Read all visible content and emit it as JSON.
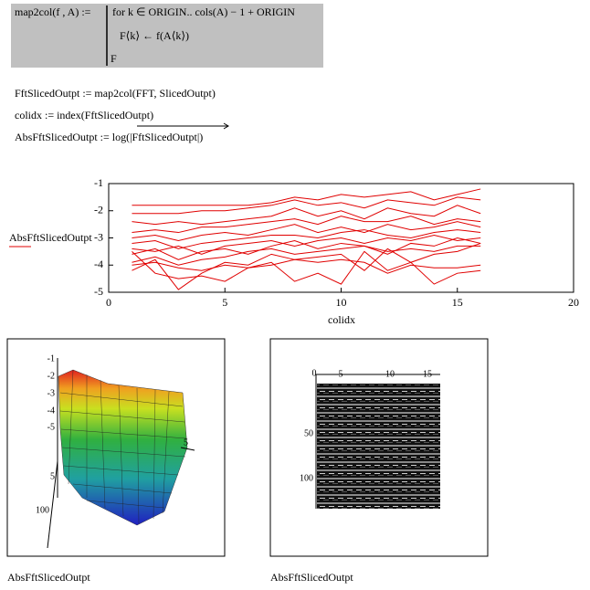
{
  "program": {
    "definition": "map2col(f , A) :=",
    "loop": "for  k ∈ ORIGIN.. cols(A) − 1 + ORIGIN",
    "body": "F⟨k⟩ ← f(A⟨k⟩)",
    "result": "F"
  },
  "equations": [
    "FftSlicedOutpt := map2col(FFT, SlicedOutpt)",
    "colidx := index(FftSlicedOutpt)",
    "AbsFftSlicedOutpt := log(|FftSlicedOutpt|)"
  ],
  "chart_data": {
    "type": "line",
    "xlabel": "colidx",
    "ylabel": "AbsFftSlicedOutpt",
    "x": [
      1,
      2,
      3,
      4,
      5,
      6,
      7,
      8,
      9,
      10,
      11,
      12,
      13,
      14,
      15,
      16
    ],
    "series": [
      {
        "color": "#e00000",
        "values": [
          -1.8,
          -1.8,
          -1.8,
          -1.8,
          -1.8,
          -1.8,
          -1.7,
          -1.5,
          -1.6,
          -1.4,
          -1.5,
          -1.4,
          -1.3,
          -1.6,
          -1.4,
          -1.2
        ]
      },
      {
        "color": "#e00000",
        "values": [
          -2.1,
          -2.1,
          -2.1,
          -2.0,
          -2.0,
          -1.9,
          -1.8,
          -1.6,
          -1.8,
          -1.7,
          -1.9,
          -1.6,
          -1.7,
          -1.8,
          -1.5,
          -1.6
        ]
      },
      {
        "color": "#e00000",
        "values": [
          -2.4,
          -2.5,
          -2.4,
          -2.5,
          -2.4,
          -2.3,
          -2.2,
          -1.9,
          -2.2,
          -2.0,
          -2.3,
          -1.9,
          -2.1,
          -2.2,
          -1.8,
          -2.1
        ]
      },
      {
        "color": "#e00000",
        "values": [
          -2.8,
          -2.7,
          -2.8,
          -2.6,
          -2.6,
          -2.5,
          -2.4,
          -2.3,
          -2.5,
          -2.2,
          -2.4,
          -2.4,
          -2.2,
          -2.5,
          -2.3,
          -2.4
        ]
      },
      {
        "color": "#e00000",
        "values": [
          -3.0,
          -2.9,
          -3.1,
          -2.9,
          -2.8,
          -2.9,
          -2.7,
          -2.5,
          -2.8,
          -2.6,
          -2.8,
          -2.5,
          -2.7,
          -2.6,
          -2.4,
          -2.6
        ]
      },
      {
        "color": "#e00000",
        "values": [
          -3.2,
          -3.1,
          -3.4,
          -3.2,
          -3.1,
          -3.0,
          -2.9,
          -2.9,
          -3.0,
          -2.8,
          -2.7,
          -2.9,
          -3.0,
          -2.8,
          -2.7,
          -2.8
        ]
      },
      {
        "color": "#e00000",
        "values": [
          -3.4,
          -3.5,
          -3.3,
          -3.6,
          -3.3,
          -3.2,
          -3.1,
          -3.3,
          -3.1,
          -3.0,
          -3.2,
          -3.0,
          -3.1,
          -2.9,
          -3.1,
          -3.0
        ]
      },
      {
        "color": "#e00000",
        "values": [
          -3.6,
          -3.4,
          -3.8,
          -3.5,
          -3.4,
          -3.6,
          -3.3,
          -3.1,
          -3.4,
          -3.2,
          -3.3,
          -3.6,
          -3.2,
          -3.3,
          -3.0,
          -3.2
        ]
      },
      {
        "color": "#e00000",
        "values": [
          -3.9,
          -3.7,
          -4.0,
          -3.8,
          -3.7,
          -3.5,
          -3.4,
          -3.6,
          -3.5,
          -3.4,
          -3.3,
          -3.5,
          -3.4,
          -3.5,
          -3.3,
          -3.3
        ]
      },
      {
        "color": "#e00000",
        "values": [
          -4.2,
          -3.8,
          -4.9,
          -4.3,
          -3.9,
          -4.0,
          -3.6,
          -3.8,
          -3.7,
          -3.6,
          -4.2,
          -3.4,
          -3.9,
          -3.6,
          -3.5,
          -3.2
        ]
      },
      {
        "color": "#e00000",
        "values": [
          -4.0,
          -3.9,
          -4.1,
          -4.2,
          -4.0,
          -4.1,
          -4.0,
          -3.8,
          -3.9,
          -3.8,
          -3.9,
          -4.3,
          -4.0,
          -4.1,
          -4.1,
          -4.0
        ]
      },
      {
        "color": "#e00000",
        "values": [
          -3.5,
          -4.3,
          -4.5,
          -4.4,
          -4.6,
          -4.1,
          -3.9,
          -4.6,
          -4.3,
          -4.7,
          -3.5,
          -4.2,
          -3.9,
          -4.7,
          -4.3,
          -4.2
        ]
      }
    ],
    "xlim": [
      0,
      20
    ],
    "ylim": [
      -5,
      -1
    ],
    "xticks": [
      0,
      5,
      10,
      15,
      20
    ],
    "yticks": [
      -1,
      -2,
      -3,
      -4,
      -5
    ]
  },
  "surface_plot": {
    "caption": "AbsFftSlicedOutpt",
    "z_tick_labels": [
      "-1",
      "-2",
      "-3",
      "-4",
      "-5"
    ],
    "x_tick_label": "5",
    "y_tick_labels": [
      "5",
      "100"
    ]
  },
  "image_plot": {
    "caption": "AbsFftSlicedOutpt",
    "top_tick_labels": [
      "0",
      "5",
      "10",
      "15"
    ],
    "left_tick_labels": [
      "50",
      "100"
    ]
  }
}
